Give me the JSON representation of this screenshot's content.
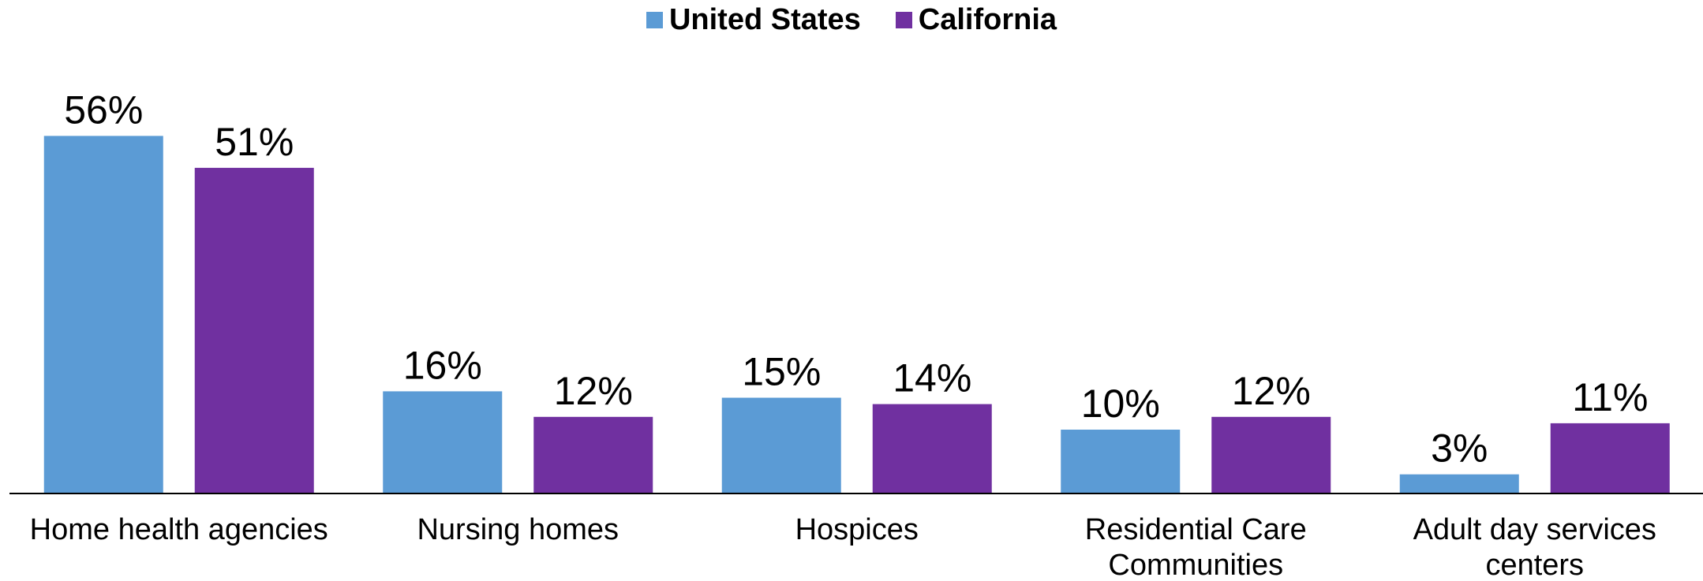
{
  "chart_data": {
    "type": "bar",
    "categories": [
      "Home health agencies",
      "Nursing homes",
      "Hospices",
      "Residential Care Communities",
      "Adult day services centers"
    ],
    "series": [
      {
        "name": "United States",
        "color": "#5b9bd5",
        "values": [
          56,
          16,
          15,
          10,
          3
        ],
        "value_labels": [
          "56%",
          "16%",
          "15%",
          "10%",
          "3%"
        ]
      },
      {
        "name": "California",
        "color": "#7030a0",
        "values": [
          51,
          12,
          14,
          12,
          11
        ],
        "value_labels": [
          "51%",
          "12%",
          "14%",
          "12%",
          "11%"
        ]
      }
    ],
    "legend": "top"
  }
}
